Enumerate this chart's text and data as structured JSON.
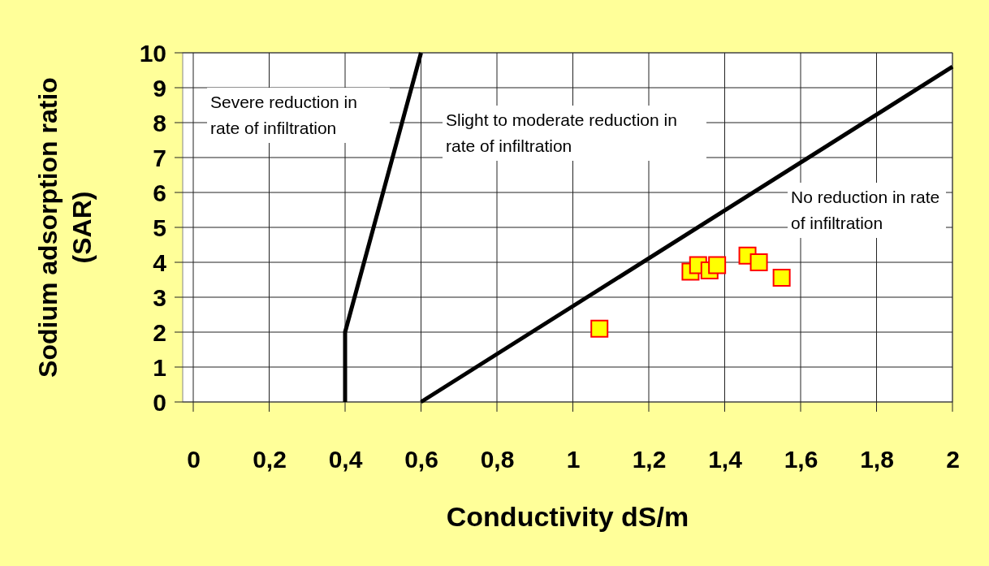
{
  "chart_data": {
    "type": "scatter",
    "xlabel": "Conductivity dS/m",
    "ylabel": "Sodium adsorption ratio (SAR)",
    "xlim": [
      0,
      2
    ],
    "ylim": [
      0,
      10
    ],
    "xticks": [
      0,
      {
        "value": 0.2,
        "label": "0,2"
      },
      {
        "value": 0.4,
        "label": "0,4"
      },
      {
        "value": 0.6,
        "label": "0,6"
      },
      {
        "value": 0.8,
        "label": "0,8"
      },
      1,
      {
        "value": 1.2,
        "label": "1,2"
      },
      {
        "value": 1.4,
        "label": "1,4"
      },
      {
        "value": 1.6,
        "label": "1,6"
      },
      {
        "value": 1.8,
        "label": "1,8"
      },
      2
    ],
    "yticks": [
      0,
      1,
      2,
      3,
      4,
      5,
      6,
      7,
      8,
      9,
      10
    ],
    "grid": true,
    "series": [
      {
        "type": "line",
        "color": "#000000",
        "marker": "none",
        "line_style": "solid",
        "x": [
          0.4,
          0.4,
          0.6
        ],
        "values": [
          0,
          2,
          10
        ]
      },
      {
        "type": "line",
        "color": "#000000",
        "marker": "none",
        "line_style": "solid",
        "x": [
          0.6,
          2
        ],
        "values": [
          0,
          9.6
        ]
      },
      {
        "color": "#ffff00",
        "marker": "square",
        "x": [
          1.07,
          1.31,
          1.33,
          1.36,
          1.38,
          1.46,
          1.49,
          1.55
        ],
        "values": [
          2.1,
          3.73,
          3.92,
          3.77,
          3.92,
          4.19,
          4.0,
          3.56
        ]
      }
    ],
    "annotations": [
      "Severe reduction in rate of infiltration",
      "Slight to moderate reduction in rate of infiltration",
      "No reduction in rate of infiltration"
    ]
  }
}
